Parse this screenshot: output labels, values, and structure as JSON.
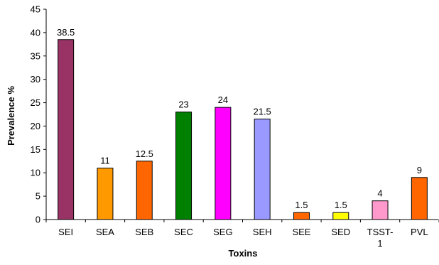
{
  "chart_data": {
    "type": "bar",
    "title": "",
    "xlabel": "Toxins",
    "ylabel": "Prevalence %",
    "ylim": [
      0,
      45
    ],
    "yticks": [
      0,
      5,
      10,
      15,
      20,
      25,
      30,
      35,
      40,
      45
    ],
    "categories": [
      "SEI",
      "SEA",
      "SEB",
      "SEC",
      "SEG",
      "SEH",
      "SEE",
      "SED",
      "TSST-1",
      "PVL"
    ],
    "category_label_lines": [
      [
        "SEI"
      ],
      [
        "SEA"
      ],
      [
        "SEB"
      ],
      [
        "SEC"
      ],
      [
        "SEG"
      ],
      [
        "SEH"
      ],
      [
        "SEE"
      ],
      [
        "SED"
      ],
      [
        "TSST-",
        "1"
      ],
      [
        "PVL"
      ]
    ],
    "values": [
      38.5,
      11,
      12.5,
      23,
      24,
      21.5,
      1.5,
      1.5,
      4,
      9
    ],
    "value_labels": [
      "38.5",
      "11",
      "12.5",
      "23",
      "24",
      "21.5",
      "1.5",
      "1.5",
      "4",
      "9"
    ],
    "bar_colors": [
      "#993366",
      "#FF9900",
      "#FF6600",
      "#008000",
      "#FF00FF",
      "#9999FF",
      "#FF6600",
      "#FFFF00",
      "#FF99CC",
      "#FF6600"
    ],
    "grid": false,
    "legend": "none"
  }
}
